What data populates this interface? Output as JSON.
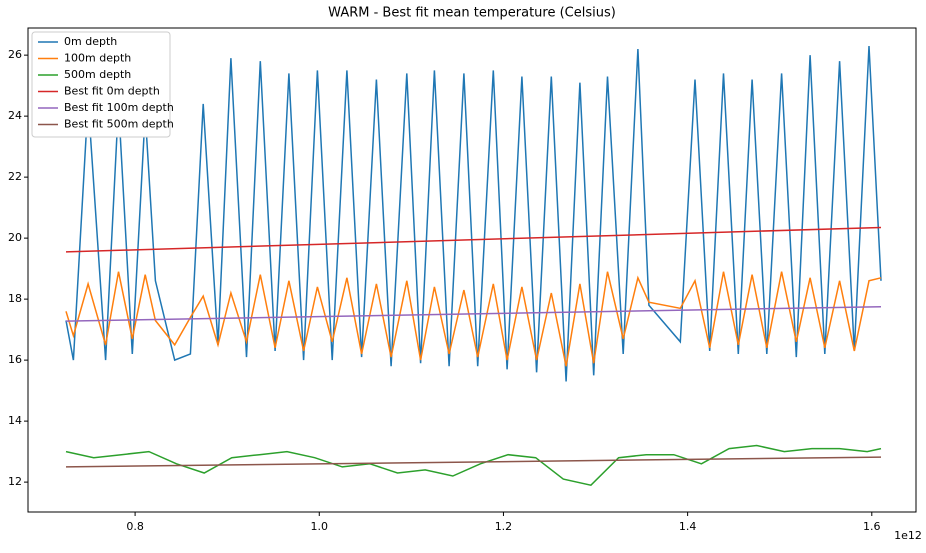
{
  "chart_data": {
    "type": "line",
    "title": "WARM - Best fit mean temperature (Celsius)",
    "x_offset_label": "1e12",
    "xlim": [
      0.6837,
      1.648
    ],
    "ylim": [
      11.02,
      26.89
    ],
    "xticks": [
      0.8,
      {
        "value": 1,
        "label": "1.0"
      },
      1.2,
      1.4,
      1.6
    ],
    "yticks": [
      12,
      14,
      16,
      18,
      20,
      22,
      24,
      26
    ],
    "grid": false,
    "legend": "upper left",
    "series": [
      {
        "name": "0m depth",
        "color": "#1f77b4",
        "x": [
          0.725,
          0.733,
          0.749,
          0.768,
          0.782,
          0.797,
          0.811,
          0.822,
          0.843,
          0.86,
          0.874,
          0.89,
          0.904,
          0.921,
          0.936,
          0.952,
          0.967,
          0.983,
          0.998,
          1.014,
          1.03,
          1.046,
          1.062,
          1.078,
          1.095,
          1.11,
          1.125,
          1.141,
          1.157,
          1.172,
          1.189,
          1.204,
          1.22,
          1.236,
          1.252,
          1.268,
          1.283,
          1.298,
          1.313,
          1.33,
          1.346,
          1.358,
          1.392,
          1.408,
          1.424,
          1.439,
          1.455,
          1.47,
          1.486,
          1.502,
          1.518,
          1.533,
          1.549,
          1.565,
          1.581,
          1.597,
          1.61
        ],
        "values": [
          17.3,
          16.0,
          24.5,
          16.0,
          24.4,
          16.2,
          24.1,
          18.6,
          16.0,
          16.2,
          24.4,
          16.5,
          25.9,
          16.1,
          25.8,
          16.3,
          25.4,
          16.0,
          25.5,
          16.0,
          25.5,
          16.1,
          25.2,
          15.8,
          25.4,
          15.9,
          25.5,
          15.8,
          25.4,
          15.8,
          25.5,
          15.7,
          25.3,
          15.6,
          25.3,
          15.3,
          25.1,
          15.5,
          25.3,
          16.2,
          26.2,
          17.8,
          16.6,
          25.2,
          16.3,
          25.4,
          16.2,
          25.2,
          16.2,
          25.4,
          16.1,
          26.0,
          16.2,
          25.8,
          16.3,
          26.3,
          18.6
        ]
      },
      {
        "name": "100m depth",
        "color": "#ff7f0e",
        "x": [
          0.725,
          0.733,
          0.749,
          0.768,
          0.782,
          0.797,
          0.811,
          0.822,
          0.843,
          0.86,
          0.874,
          0.89,
          0.904,
          0.921,
          0.936,
          0.952,
          0.967,
          0.983,
          0.998,
          1.014,
          1.03,
          1.046,
          1.062,
          1.078,
          1.095,
          1.11,
          1.125,
          1.141,
          1.157,
          1.172,
          1.189,
          1.204,
          1.22,
          1.236,
          1.252,
          1.268,
          1.283,
          1.298,
          1.313,
          1.33,
          1.346,
          1.358,
          1.392,
          1.408,
          1.424,
          1.439,
          1.455,
          1.47,
          1.486,
          1.502,
          1.518,
          1.533,
          1.549,
          1.565,
          1.581,
          1.597,
          1.61
        ],
        "values": [
          17.6,
          16.8,
          18.5,
          16.5,
          18.9,
          16.7,
          18.8,
          17.3,
          16.5,
          17.4,
          18.1,
          16.5,
          18.2,
          16.6,
          18.8,
          16.4,
          18.6,
          16.3,
          18.4,
          16.6,
          18.7,
          16.2,
          18.5,
          16.1,
          18.6,
          16.0,
          18.4,
          16.2,
          18.3,
          16.1,
          18.5,
          16.0,
          18.4,
          16.0,
          18.2,
          15.8,
          18.5,
          15.9,
          18.9,
          16.7,
          18.7,
          17.9,
          17.7,
          18.6,
          16.4,
          18.9,
          16.5,
          18.8,
          16.4,
          18.9,
          16.6,
          18.7,
          16.4,
          18.6,
          16.3,
          18.6,
          18.7
        ]
      },
      {
        "name": "500m depth",
        "color": "#2ca02c",
        "x": [
          0.725,
          0.755,
          0.785,
          0.815,
          0.845,
          0.875,
          0.905,
          0.935,
          0.965,
          0.995,
          1.025,
          1.055,
          1.085,
          1.115,
          1.145,
          1.175,
          1.205,
          1.235,
          1.265,
          1.295,
          1.325,
          1.355,
          1.385,
          1.415,
          1.445,
          1.475,
          1.505,
          1.535,
          1.565,
          1.595,
          1.61
        ],
        "values": [
          13.0,
          12.8,
          12.9,
          13.0,
          12.6,
          12.3,
          12.8,
          12.9,
          13.0,
          12.8,
          12.5,
          12.6,
          12.3,
          12.4,
          12.2,
          12.6,
          12.9,
          12.8,
          12.1,
          11.9,
          12.8,
          12.9,
          12.9,
          12.6,
          13.1,
          13.2,
          13.0,
          13.1,
          13.1,
          13.0,
          13.1
        ]
      },
      {
        "name": "Best fit 0m depth",
        "color": "#d62728",
        "x": [
          0.725,
          1.61
        ],
        "values": [
          19.55,
          20.35
        ]
      },
      {
        "name": "Best fit 100m depth",
        "color": "#9467bd",
        "x": [
          0.725,
          1.61
        ],
        "values": [
          17.28,
          17.75
        ]
      },
      {
        "name": "Best fit 500m depth",
        "color": "#8c564b",
        "x": [
          0.725,
          1.61
        ],
        "values": [
          12.5,
          12.82
        ]
      }
    ]
  }
}
